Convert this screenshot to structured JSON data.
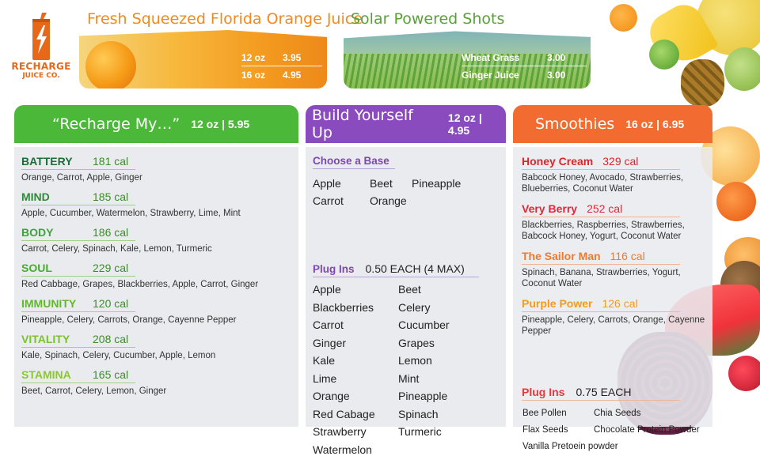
{
  "logo": {
    "brand": "RECHARGE",
    "sub": "JUICE CO."
  },
  "banners": {
    "orange_juice": {
      "title": "Fresh Squeezed Florida Orange Juice",
      "rows": [
        {
          "size": "12 oz",
          "price": "3.95"
        },
        {
          "size": "16 oz",
          "price": "4.95"
        }
      ]
    },
    "solar": {
      "title": "Solar Powered Shots",
      "rows": [
        {
          "size": "Wheat Grass",
          "price": "3.00"
        },
        {
          "size": "Ginger Juice",
          "price": "3.00"
        }
      ]
    }
  },
  "recharge": {
    "title": "“Recharge My…”",
    "meta": "12 oz  | 5.95",
    "items": [
      {
        "name": "BATTERY",
        "cal": "181 cal",
        "ingredients": "Orange, Carrot, Apple, Ginger",
        "color": "#1f6b3a"
      },
      {
        "name": "MIND",
        "cal": "185 cal",
        "ingredients": "Apple, Cucumber, Watermelon, Strawberry, Lime, Mint",
        "color": "#2f8a3a"
      },
      {
        "name": "BODY",
        "cal": "186 cal",
        "ingredients": "Carrot, Celery, Spinach, Kale, Lemon, Turmeric",
        "color": "#3da33a"
      },
      {
        "name": "SOUL",
        "cal": "229 cal",
        "ingredients": "Red Cabbage, Grapes, Blackberries, Apple, Carrot, Ginger",
        "color": "#48ad2f"
      },
      {
        "name": "IMMUNITY",
        "cal": "120 cal",
        "ingredients": "Pineapple, Celery, Carrots, Orange, Cayenne Pepper",
        "color": "#62b82c"
      },
      {
        "name": "VITALITY",
        "cal": "208 cal",
        "ingredients": "Kale, Spinach, Celery, Cucumber, Apple, Lemon",
        "color": "#78c42a"
      },
      {
        "name": "STAMINA",
        "cal": "165 cal",
        "ingredients": "Beet, Carrot, Celery, Lemon, Ginger",
        "color": "#8cc828"
      }
    ]
  },
  "build": {
    "title": "Build Yourself Up",
    "meta": "12 oz  | 4.95",
    "base_label": "Choose a Base",
    "bases": [
      "Apple",
      "Beet",
      "Pineapple",
      "Carrot",
      "Orange"
    ],
    "plug_label": "Plug Ins",
    "plug_price": "0.50 EACH (4 MAX)",
    "addons": [
      "Apple",
      "Beet",
      "Blackberries",
      "Celery",
      "Carrot",
      "Cucumber",
      "Ginger",
      "Grapes",
      "Kale",
      "Lemon",
      "Lime",
      "Mint",
      "Orange",
      "Pineapple",
      "Red Cabage",
      "Spinach",
      "Strawberry",
      "Turmeric",
      "Watermelon"
    ]
  },
  "smoothies": {
    "title": "Smoothies",
    "meta": "16 oz  | 6.95",
    "items": [
      {
        "name": "Honey Cream",
        "cal": "329 cal",
        "ingredients": "Babcock Honey, Avocado, Strawberries, Blueberries, Coconut Water",
        "color": "#d8262c"
      },
      {
        "name": "Very Berry",
        "cal": "252 cal",
        "ingredients": "Blackberries, Raspberries, Strawberries, Babcock Honey, Yogurt, Coconut Water",
        "color": "#e0283a"
      },
      {
        "name": "The Sailor Man",
        "cal": "116 cal",
        "ingredients": "Spinach, Banana, Strawberries, Yogurt, Coconut Water",
        "color": "#f07a2a"
      },
      {
        "name": "Purple Power",
        "cal": "126 cal",
        "ingredients": "Pineapple, Celery, Carrots, Orange, Cayenne Pepper",
        "color": "#f39a1c"
      }
    ],
    "plug_label": "Plug Ins",
    "plug_price": "0.75 EACH",
    "addons": [
      "Bee Pollen",
      "Chia Seeds",
      "Flax Seeds",
      "Chocolate Protein Powder",
      "Vanilla Pretoein powder"
    ]
  }
}
